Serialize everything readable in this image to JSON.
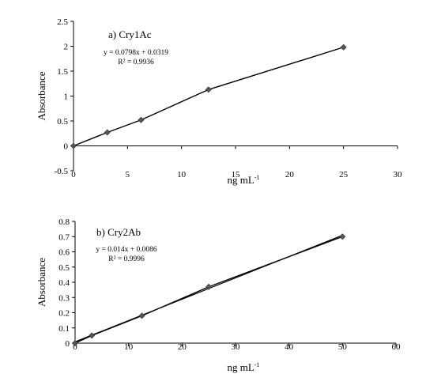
{
  "chart_data": [
    {
      "type": "line",
      "title": "a) Cry1Ac",
      "equation": "y = 0.0798x + 0.0319",
      "r2": "R² = 0.9936",
      "xlabel": "ng mL",
      "xlabel_sup": "-1",
      "ylabel": "Absorbance",
      "xlim": [
        0,
        30
      ],
      "ylim": [
        -0.5,
        2.5
      ],
      "xticks": [
        "0",
        "5",
        "10",
        "15",
        "20",
        "25",
        "30"
      ],
      "yticks": [
        "-0.5",
        "0",
        "0.5",
        "1",
        "1.5",
        "2",
        "2.5"
      ],
      "x": [
        0,
        3.125,
        6.25,
        12.5,
        25
      ],
      "y": [
        0,
        0.27,
        0.52,
        1.13,
        1.98
      ],
      "trendline": {
        "slope": 0.0798,
        "intercept": 0.0319,
        "shown": false
      },
      "grid": false,
      "legend": "none",
      "color": "#000000",
      "marker_color": "#555555"
    },
    {
      "type": "line",
      "title": "b) Cry2Ab",
      "equation": "y = 0.014x + 0.0086",
      "r2": "R² = 0.9996",
      "xlabel": "ng mL",
      "xlabel_sup": "-1",
      "ylabel": "Absorbance",
      "xlim": [
        0,
        60
      ],
      "ylim": [
        0,
        0.8
      ],
      "xticks": [
        "0",
        "10",
        "20",
        "30",
        "40",
        "50",
        "60"
      ],
      "yticks": [
        "0",
        "0.1",
        "0.2",
        "0.3",
        "0.4",
        "0.5",
        "0.6",
        "0.7",
        "0.8"
      ],
      "x": [
        0,
        3.125,
        12.5,
        25,
        50
      ],
      "y": [
        0,
        0.05,
        0.18,
        0.37,
        0.7
      ],
      "trendline": {
        "slope": 0.014,
        "intercept": 0.0086,
        "shown": true
      },
      "grid": false,
      "legend": "none",
      "color": "#000000",
      "marker_color": "#555555"
    }
  ]
}
